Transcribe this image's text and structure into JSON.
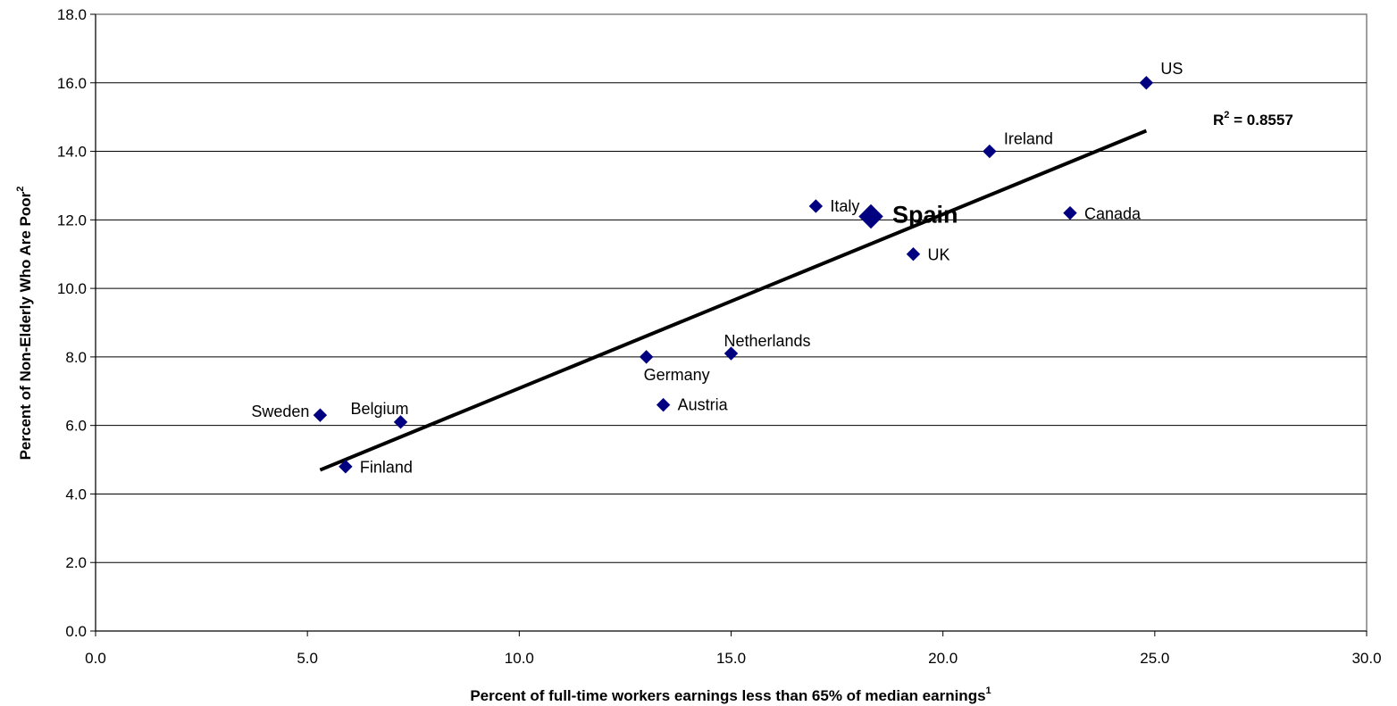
{
  "chart_data": {
    "type": "scatter",
    "xlabel": "Percent of full-time workers earnings less than 65% of median earnings",
    "xlabel_sup": "1",
    "ylabel": "Percent of Non-Elderly Who Are Poor",
    "ylabel_sup": "2",
    "xlim": [
      0,
      30
    ],
    "ylim": [
      0,
      18
    ],
    "x_ticks": [
      "0.0",
      "5.0",
      "10.0",
      "15.0",
      "20.0",
      "25.0",
      "30.0"
    ],
    "y_ticks": [
      "0.0",
      "2.0",
      "4.0",
      "6.0",
      "8.0",
      "10.0",
      "12.0",
      "14.0",
      "16.0",
      "18.0"
    ],
    "grid": "horizontal",
    "marker_color": "#000080",
    "trend_color": "#000000",
    "points": [
      {
        "label": "US",
        "x": 24.8,
        "y": 16.0
      },
      {
        "label": "Ireland",
        "x": 21.1,
        "y": 14.0
      },
      {
        "label": "Canada",
        "x": 23.0,
        "y": 12.2
      },
      {
        "label": "UK",
        "x": 19.3,
        "y": 11.0
      },
      {
        "label": "Spain",
        "x": 18.3,
        "y": 12.1,
        "highlight": true
      },
      {
        "label": "Italy",
        "x": 17.0,
        "y": 12.4
      },
      {
        "label": "Netherlands",
        "x": 15.0,
        "y": 8.1
      },
      {
        "label": "Germany",
        "x": 13.0,
        "y": 8.0
      },
      {
        "label": "Austria",
        "x": 13.4,
        "y": 6.6
      },
      {
        "label": "Belgium",
        "x": 7.2,
        "y": 6.1
      },
      {
        "label": "Sweden",
        "x": 5.3,
        "y": 6.3
      },
      {
        "label": "Finland",
        "x": 5.9,
        "y": 4.8
      }
    ],
    "trendline": {
      "x": [
        5.3,
        24.8
      ],
      "y": [
        4.7,
        14.6
      ]
    },
    "r_squared_prefix": "R",
    "r_squared_sup": "2",
    "r_squared_value": " = 0.8557"
  }
}
